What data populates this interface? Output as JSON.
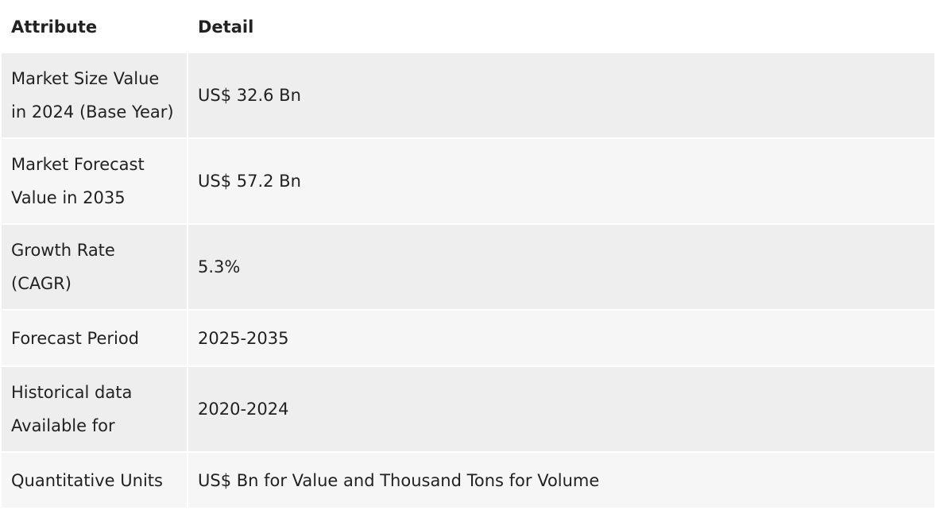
{
  "table": {
    "headers": {
      "attribute": "Attribute",
      "detail": "Detail"
    },
    "rows": [
      {
        "attribute": "Market Size Value in 2024 (Base Year)",
        "detail": "US$ 32.6 Bn"
      },
      {
        "attribute": "Market Forecast Value in 2035",
        "detail": "US$ 57.2 Bn"
      },
      {
        "attribute": "Growth Rate (CAGR)",
        "detail": "5.3%"
      },
      {
        "attribute": "Forecast Period",
        "detail": "2025-2035"
      },
      {
        "attribute": "Historical data Available for",
        "detail": "2020-2024"
      },
      {
        "attribute": "Quantitative Units",
        "detail": "US$ Bn for Value and Thousand Tons for Volume"
      }
    ]
  },
  "colors": {
    "row_dark": "#eeeeee",
    "row_light": "#f6f6f6",
    "text": "#222222"
  }
}
